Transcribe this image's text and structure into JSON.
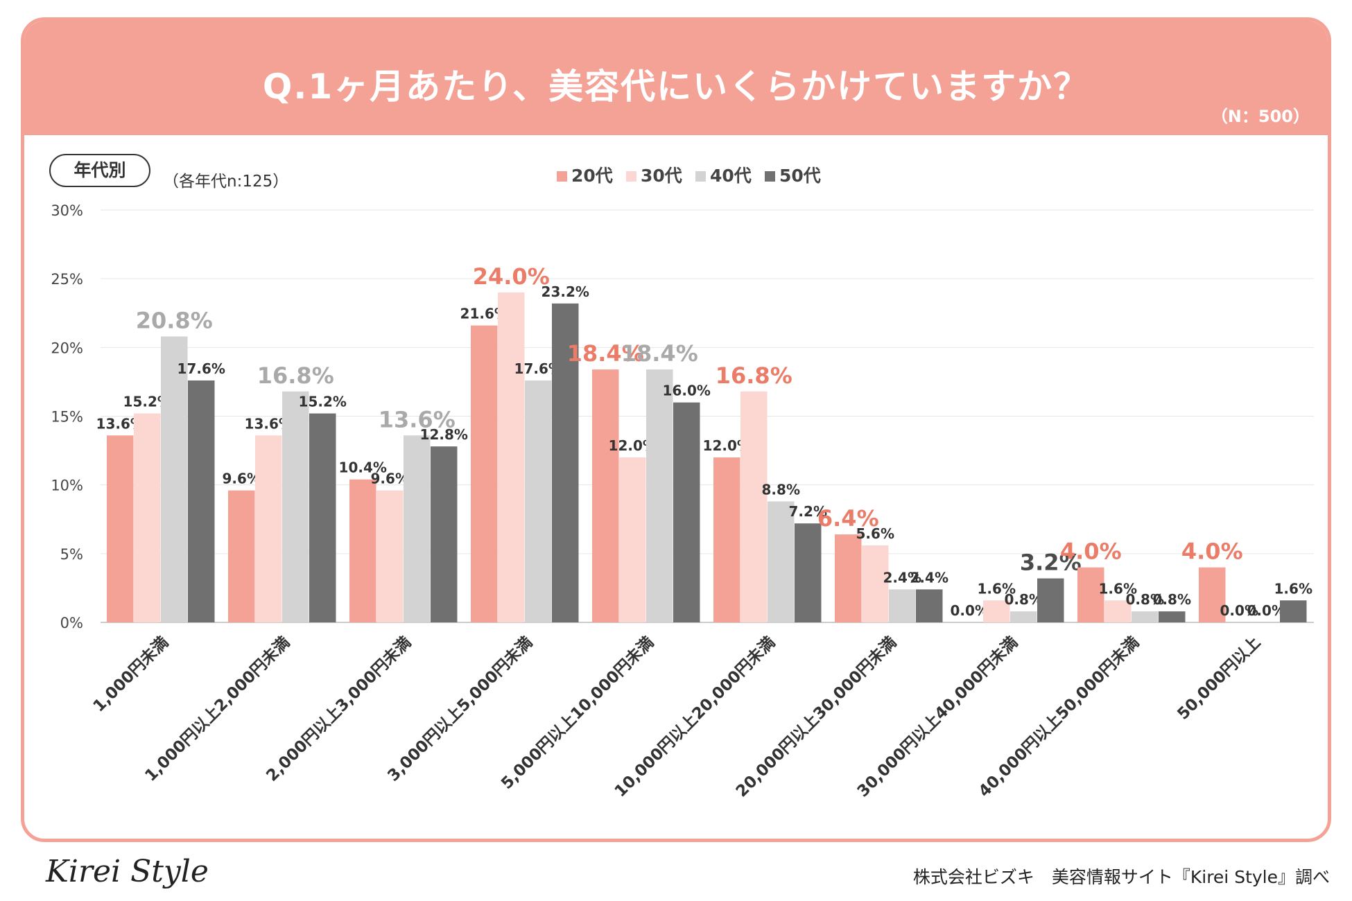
{
  "header": {
    "title": "Q.1ヶ月あたり、美容代にいくらかけていますか？",
    "sample_size": "（N：500）"
  },
  "segment": {
    "label": "年代別",
    "note": "（各年代n:125）"
  },
  "colors": {
    "header": "#f4a296",
    "s20": "#f4a296",
    "s30": "#fcd6d0",
    "s40": "#d3d3d3",
    "s50": "#707070",
    "highlight_pink": "#ea7c68",
    "highlight_gray": "#a9a9a9",
    "highlight_dark": "#4a4a4a"
  },
  "chart_data": {
    "type": "bar",
    "title": "Q.1ヶ月あたり、美容代にいくらかけていますか？",
    "categories": [
      "1,000円未満",
      "1,000円以上2,000円未満",
      "2,000円以上3,000円未満",
      "3,000円以上5,000円未満",
      "5,000円以上10,000円未満",
      "10,000円以上20,000円未満",
      "20,000円以上30,000円未満",
      "30,000円以上40,000円未満",
      "40,000円以上50,000円未満",
      "50,000円以上"
    ],
    "series": [
      {
        "name": "20代",
        "values": [
          13.6,
          9.6,
          10.4,
          21.6,
          18.4,
          12.0,
          6.4,
          0.0,
          4.0,
          4.0
        ],
        "labels": [
          "13.6%",
          "9.6%",
          "10.4%",
          "21.6%",
          "18.4%",
          "12.0%",
          "6.4%",
          "0.0%",
          "4.0%",
          "4.0%"
        ]
      },
      {
        "name": "30代",
        "values": [
          15.2,
          13.6,
          9.6,
          24.0,
          12.0,
          16.8,
          5.6,
          1.6,
          1.6,
          0.0
        ],
        "labels": [
          "15.2%",
          "13.6%",
          "9.6%",
          "24.0%",
          "12.0%",
          "16.8%",
          "5.6%",
          "1.6%",
          "1.6%",
          "0.0%"
        ]
      },
      {
        "name": "40代",
        "values": [
          20.8,
          16.8,
          13.6,
          17.6,
          18.4,
          8.8,
          2.4,
          0.8,
          0.8,
          0.0
        ],
        "labels": [
          "20.8%",
          "16.8%",
          "13.6%",
          "17.6%",
          "18.4%",
          "8.8%",
          "2.4%",
          "0.8%",
          "0.8%",
          "0.0%"
        ]
      },
      {
        "name": "50代",
        "values": [
          17.6,
          15.2,
          12.8,
          23.2,
          16.0,
          7.2,
          2.4,
          3.2,
          0.8,
          1.6
        ],
        "labels": [
          "17.6%",
          "15.2%",
          "12.8%",
          "23.2%",
          "16.0%",
          "7.2%",
          "2.4%",
          "3.2%",
          "0.8%",
          "1.6%"
        ]
      }
    ],
    "highlights": [
      {
        "category": 0,
        "series": 2,
        "style": "gray"
      },
      {
        "category": 1,
        "series": 2,
        "style": "gray"
      },
      {
        "category": 2,
        "series": 2,
        "style": "gray"
      },
      {
        "category": 3,
        "series": 1,
        "style": "pink"
      },
      {
        "category": 4,
        "series": 0,
        "style": "pink"
      },
      {
        "category": 4,
        "series": 2,
        "style": "gray"
      },
      {
        "category": 5,
        "series": 1,
        "style": "pink"
      },
      {
        "category": 6,
        "series": 0,
        "style": "pink"
      },
      {
        "category": 7,
        "series": 3,
        "style": "dark"
      },
      {
        "category": 8,
        "series": 0,
        "style": "pink"
      },
      {
        "category": 9,
        "series": 0,
        "style": "pink"
      }
    ],
    "y_ticks": [
      "0%",
      "5%",
      "10%",
      "15%",
      "20%",
      "25%",
      "30%"
    ],
    "ylim": [
      0,
      30
    ],
    "xlabel": "",
    "ylabel": "",
    "legend_position": "top-center",
    "grid": true
  },
  "footer": {
    "logo": "Kirei Style",
    "credit": "株式会社ビズキ　美容情報サイト『Kirei Style』調べ"
  }
}
